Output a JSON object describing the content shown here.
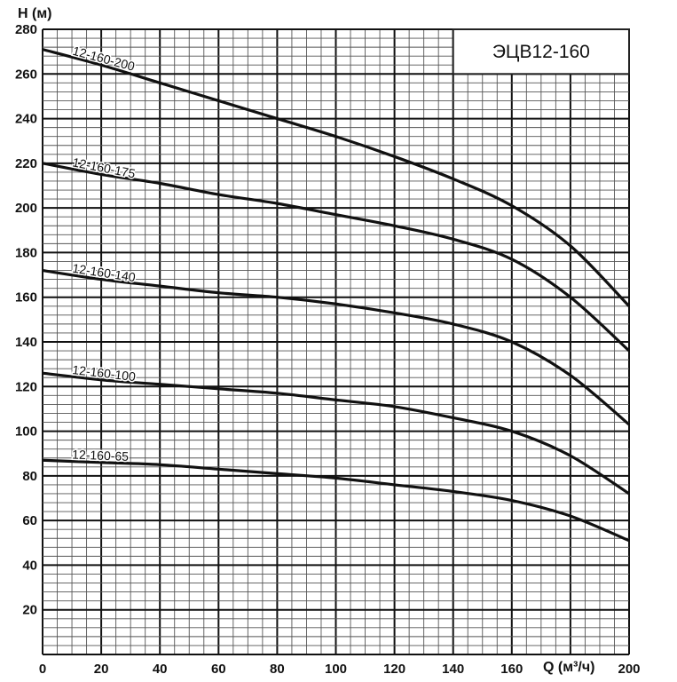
{
  "chart_data": {
    "type": "line",
    "title": "ЭЦВ12-160",
    "xlabel": "Q (м³/ч)",
    "ylabel": "H (м)",
    "xlim": [
      0,
      200
    ],
    "ylim": [
      0,
      280
    ],
    "x_ticks": [
      0,
      20,
      40,
      60,
      80,
      100,
      120,
      140,
      160,
      200
    ],
    "y_ticks": [
      20,
      40,
      60,
      80,
      100,
      120,
      140,
      160,
      180,
      200,
      220,
      240,
      260,
      280
    ],
    "grid": true,
    "x": [
      0,
      20,
      40,
      60,
      80,
      100,
      120,
      140,
      160,
      180,
      200
    ],
    "series": [
      {
        "name": "12-160-200",
        "values": [
          271,
          264,
          256,
          248,
          240,
          232,
          223,
          213,
          201,
          183,
          156
        ]
      },
      {
        "name": "12-160-175",
        "values": [
          220,
          215,
          211,
          206,
          202,
          197,
          192,
          186,
          177,
          160,
          136
        ]
      },
      {
        "name": "12-160-140",
        "values": [
          172,
          168,
          165,
          162,
          160,
          157,
          153,
          148,
          140,
          125,
          103
        ]
      },
      {
        "name": "12-160-100",
        "values": [
          126,
          123,
          121,
          119,
          117,
          114,
          111,
          106,
          100,
          89,
          72
        ]
      },
      {
        "name": "12-160-65",
        "values": [
          87,
          86,
          85,
          83,
          81,
          79,
          76,
          73,
          69,
          62,
          51
        ]
      }
    ],
    "colors": {
      "line": "#111111",
      "grid": "#222222",
      "background": "#ffffff"
    }
  }
}
